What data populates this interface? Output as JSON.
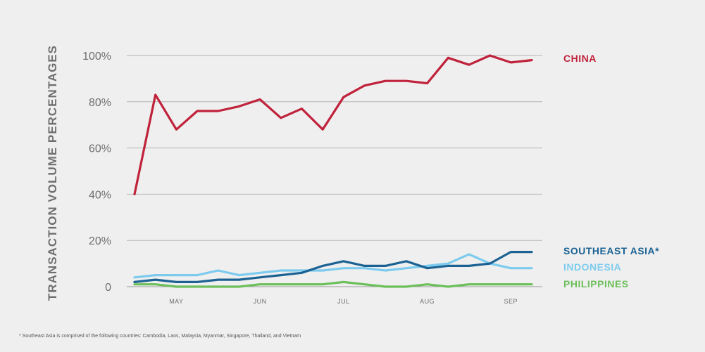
{
  "chart_data": {
    "type": "line",
    "ylabel": "TRANSACTION VOLUME PERCENTAGES",
    "ylim": [
      0,
      100
    ],
    "yticks": [
      0,
      20,
      40,
      60,
      80,
      100
    ],
    "ytick_labels": [
      "0",
      "20%",
      "40%",
      "60%",
      "80%",
      "100%"
    ],
    "x_tick_labels": [
      "MAY",
      "JUN",
      "JUL",
      "AUG",
      "SEP"
    ],
    "x_tick_positions": [
      2,
      6,
      10,
      14,
      18
    ],
    "x_range": [
      0,
      19
    ],
    "grid": true,
    "legend_placement": "right",
    "series": [
      {
        "name": "CHINA",
        "color": "#c0223b",
        "values": [
          40,
          83,
          68,
          76,
          76,
          78,
          81,
          73,
          77,
          68,
          82,
          87,
          89,
          89,
          88,
          99,
          96,
          100,
          97,
          98
        ]
      },
      {
        "name": "SOUTHEAST ASIA*",
        "color": "#1b6293",
        "values": [
          2,
          3,
          2,
          2,
          3,
          3,
          4,
          5,
          6,
          9,
          11,
          9,
          9,
          11,
          8,
          9,
          9,
          10,
          15,
          15
        ]
      },
      {
        "name": "INDONESIA",
        "color": "#7ccbee",
        "values": [
          4,
          5,
          5,
          5,
          7,
          5,
          6,
          7,
          7,
          7,
          8,
          8,
          7,
          8,
          9,
          10,
          14,
          10,
          8,
          8
        ]
      },
      {
        "name": "PHILIPPINES",
        "color": "#6cbf5a",
        "values": [
          1,
          1,
          0,
          0,
          0,
          0,
          1,
          1,
          1,
          1,
          2,
          1,
          0,
          0,
          1,
          0,
          1,
          1,
          1,
          1
        ]
      }
    ]
  },
  "footnote": "* Southeast Asia is comprised of the following countries: Cambodia, Laos, Malaysia, Myanmar, Singapore, Thailand, and Vietnam"
}
